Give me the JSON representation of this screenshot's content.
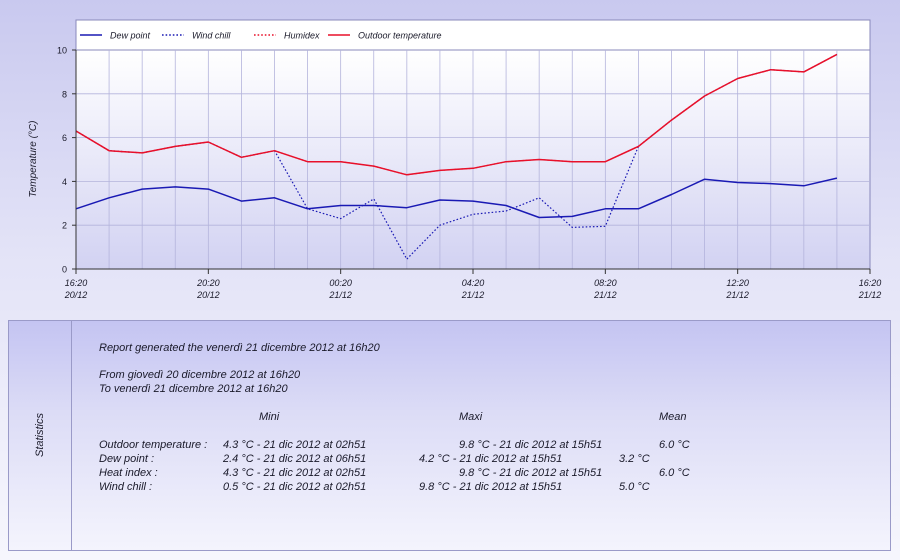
{
  "chart_data": {
    "type": "line",
    "ylabel": "Temperature (°C)",
    "xlabel": "",
    "ylim": [
      0,
      10
    ],
    "yticks": [
      "0",
      "2",
      "4",
      "6",
      "8",
      "10"
    ],
    "x": [
      "16h20",
      "17h20",
      "18h20",
      "19h20",
      "20h20",
      "21h20",
      "22h20",
      "23h20",
      "00h20",
      "01h20",
      "02h20",
      "03h20",
      "04h20",
      "05h20",
      "06h20",
      "07h20",
      "08h20",
      "09h20",
      "10h20",
      "11h20",
      "12h20",
      "13h20",
      "14h20",
      "15h20"
    ],
    "xticks": [
      {
        "index": 0,
        "time": "16:20",
        "date": "20/12"
      },
      {
        "index": 4,
        "time": "20:20",
        "date": "20/12"
      },
      {
        "index": 8,
        "time": "00:20",
        "date": "21/12"
      },
      {
        "index": 12,
        "time": "04:20",
        "date": "21/12"
      },
      {
        "index": 16,
        "time": "08:20",
        "date": "21/12"
      },
      {
        "index": 20,
        "time": "12:20",
        "date": "21/12"
      },
      {
        "index": 24,
        "time": "16:20",
        "date": "21/12"
      }
    ],
    "grid": true,
    "legend_position": "top",
    "series": [
      {
        "name": "Dew point",
        "color": "#1a1ab4",
        "style": "solid",
        "values": [
          2.75,
          3.25,
          3.65,
          3.75,
          3.65,
          3.1,
          3.25,
          2.75,
          2.9,
          2.9,
          2.8,
          3.15,
          3.1,
          2.9,
          2.35,
          2.4,
          2.75,
          2.75,
          3.4,
          4.1,
          3.95,
          3.9,
          3.8,
          4.15
        ]
      },
      {
        "name": "Wind chill",
        "color": "#1a1ab4",
        "style": "dotted",
        "values": [
          6.3,
          5.4,
          5.3,
          5.6,
          5.8,
          5.1,
          5.4,
          2.75,
          2.3,
          3.2,
          0.45,
          2.0,
          2.5,
          2.65,
          3.25,
          1.9,
          1.95,
          5.6,
          6.8,
          7.9,
          8.7,
          9.1,
          9.0,
          9.8
        ]
      },
      {
        "name": "Humidex",
        "color": "#e8102a",
        "style": "dotted",
        "values": [
          6.3,
          5.4,
          5.3,
          5.6,
          5.8,
          5.1,
          5.4,
          4.9,
          4.9,
          4.7,
          4.3,
          4.5,
          4.6,
          4.9,
          5.0,
          4.9,
          4.9,
          5.6,
          6.8,
          7.9,
          8.7,
          9.1,
          9.0,
          9.8
        ]
      },
      {
        "name": "Outdoor temperature",
        "color": "#e8102a",
        "style": "solid",
        "values": [
          6.3,
          5.4,
          5.3,
          5.6,
          5.8,
          5.1,
          5.4,
          4.9,
          4.9,
          4.7,
          4.3,
          4.5,
          4.6,
          4.9,
          5.0,
          4.9,
          4.9,
          5.6,
          6.8,
          7.9,
          8.7,
          9.1,
          9.0,
          9.8
        ]
      }
    ]
  },
  "stats": {
    "tab_label": "Statistics",
    "report_line": "Report generated the venerdì 21 dicembre 2012 at 16h20",
    "from_line": "From giovedì 20 dicembre 2012 at 16h20",
    "to_line": "To venerdì 21 dicembre 2012 at 16h20",
    "headers": {
      "min": "Mini",
      "max": "Maxi",
      "mean": "Mean"
    },
    "rows": [
      {
        "label": "Outdoor temperature :",
        "min": "4.3 °C - 21 dic 2012 at 02h51",
        "max": "9.8 °C - 21 dic 2012 at 15h51",
        "mean": "6.0 °C"
      },
      {
        "label": "Dew point :",
        "min": "2.4 °C - 21 dic 2012 at 06h51",
        "max": "4.2 °C - 21 dic 2012 at 15h51",
        "mean": "3.2 °C"
      },
      {
        "label": "Heat index :",
        "min": "4.3 °C - 21 dic 2012 at 02h51",
        "max": "9.8 °C - 21 dic 2012 at 15h51",
        "mean": "6.0 °C"
      },
      {
        "label": "Wind chill :",
        "min": "0.5 °C - 21 dic 2012 at 02h51",
        "max": "9.8 °C - 21 dic 2012 at 15h51",
        "mean": "5.0 °C"
      }
    ]
  }
}
